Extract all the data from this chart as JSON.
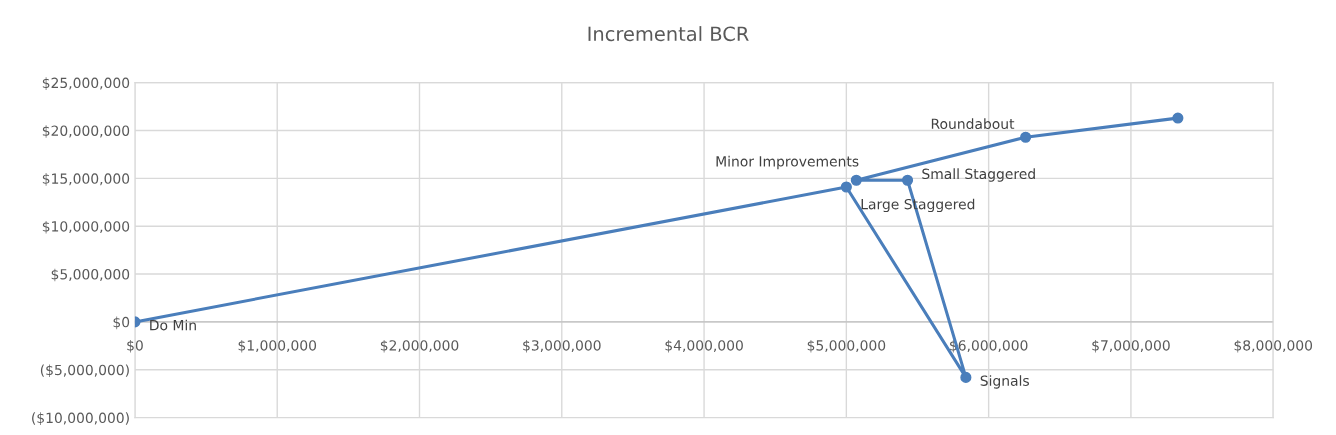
{
  "chart_data": {
    "type": "line",
    "title": "Incremental BCR",
    "x": [
      0,
      5000000,
      5840000,
      5430000,
      5070000,
      6260000,
      7330000
    ],
    "series": [
      {
        "color": "#4a7ebb",
        "values": [
          0,
          14100000,
          -5800000,
          14800000,
          14800000,
          19300000,
          21300000
        ]
      }
    ],
    "marker": "circle",
    "line_style": "solid",
    "grid": true,
    "legend": false,
    "xlim": [
      0,
      8000000
    ],
    "xticks": [
      {
        "value": 0,
        "label": "$0"
      },
      {
        "value": 1000000,
        "label": "$1,000,000"
      },
      {
        "value": 2000000,
        "label": "$2,000,000"
      },
      {
        "value": 3000000,
        "label": "$3,000,000"
      },
      {
        "value": 4000000,
        "label": "$4,000,000"
      },
      {
        "value": 5000000,
        "label": "$5,000,000"
      },
      {
        "value": 6000000,
        "label": "$6,000,000"
      },
      {
        "value": 7000000,
        "label": "$7,000,000"
      },
      {
        "value": 8000000,
        "label": "$8,000,000"
      }
    ],
    "ylim": [
      -10000000,
      25000000
    ],
    "yticks": [
      {
        "value": -10000000,
        "label": "($10,000,000)"
      },
      {
        "value": -5000000,
        "label": "($5,000,000)"
      },
      {
        "value": 0,
        "label": "$0"
      },
      {
        "value": 5000000,
        "label": "$5,000,000"
      },
      {
        "value": 10000000,
        "label": "$10,000,000"
      },
      {
        "value": 15000000,
        "label": "$15,000,000"
      },
      {
        "value": 20000000,
        "label": "$20,000,000"
      },
      {
        "value": 25000000,
        "label": "$25,000,000"
      }
    ],
    "annotations": [
      {
        "text": "Do Min",
        "x": 0,
        "y": 0
      },
      {
        "text": "Large Staggered",
        "x": 5000000,
        "y": 14100000
      },
      {
        "text": "Signals",
        "x": 5840000,
        "y": -5800000
      },
      {
        "text": "Small Staggered",
        "x": 5430000,
        "y": 14800000
      },
      {
        "text": "Minor Improvements",
        "x": 5070000,
        "y": 14800000
      },
      {
        "text": "Roundabout",
        "x": 6260000,
        "y": 19300000
      }
    ]
  }
}
